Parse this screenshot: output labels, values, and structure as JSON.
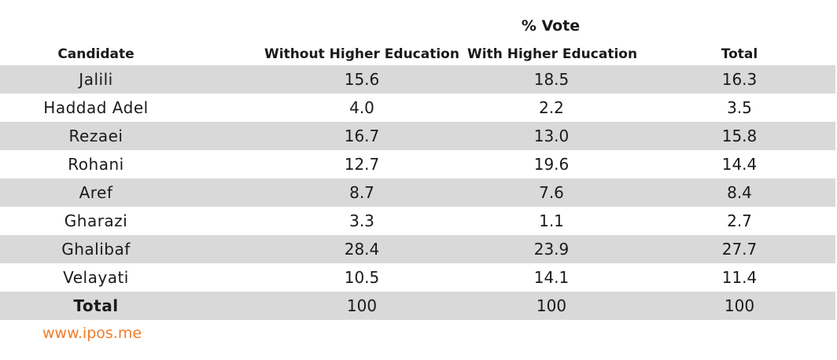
{
  "table": {
    "super_header": "% Vote",
    "columns": [
      "Candidate",
      "Without Higher Education",
      "With Higher Education",
      "Total"
    ],
    "rows": [
      {
        "candidate": "Jalili",
        "without": "15.6",
        "with": "18.5",
        "total": "16.3"
      },
      {
        "candidate": "Haddad Adel",
        "without": "4.0",
        "with": "2.2",
        "total": "3.5"
      },
      {
        "candidate": "Rezaei",
        "without": "16.7",
        "with": "13.0",
        "total": "15.8"
      },
      {
        "candidate": "Rohani",
        "without": "12.7",
        "with": "19.6",
        "total": "14.4"
      },
      {
        "candidate": "Aref",
        "without": "8.7",
        "with": "7.6",
        "total": "8.4"
      },
      {
        "candidate": "Gharazi",
        "without": "3.3",
        "with": "1.1",
        "total": "2.7"
      },
      {
        "candidate": "Ghalibaf",
        "without": "28.4",
        "with": "23.9",
        "total": "27.7"
      },
      {
        "candidate": "Velayati",
        "without": "10.5",
        "with": "14.1",
        "total": "11.4"
      },
      {
        "candidate": "Total",
        "without": "100",
        "with": "100",
        "total": "100"
      }
    ]
  },
  "footer": {
    "source": "www.ipos.me"
  },
  "colors": {
    "row_shade": "#d9d9d9",
    "source_text": "#f07c29"
  },
  "chart_data": {
    "type": "table",
    "title": "% Vote",
    "columns": [
      "Candidate",
      "Without Higher Education",
      "With Higher Education",
      "Total"
    ],
    "rows": [
      [
        "Jalili",
        15.6,
        18.5,
        16.3
      ],
      [
        "Haddad Adel",
        4.0,
        2.2,
        3.5
      ],
      [
        "Rezaei",
        16.7,
        13.0,
        15.8
      ],
      [
        "Rohani",
        12.7,
        19.6,
        14.4
      ],
      [
        "Aref",
        8.7,
        7.6,
        8.4
      ],
      [
        "Gharazi",
        3.3,
        1.1,
        2.7
      ],
      [
        "Ghalibaf",
        28.4,
        23.9,
        27.7
      ],
      [
        "Velayati",
        10.5,
        14.1,
        11.4
      ],
      [
        "Total",
        100,
        100,
        100
      ]
    ]
  }
}
